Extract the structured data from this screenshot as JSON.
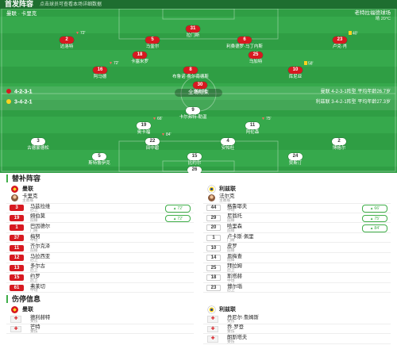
{
  "header": {
    "title": "首发阵容",
    "subtitle": "点击球员可查看本场详细数据"
  },
  "pitch": {
    "home_label": "曼联 · 卡里克",
    "venue": "老特拉福德球场",
    "weather": "晴 20°C",
    "center_text": "全场结束",
    "home_formation": "4-2-3-1",
    "away_formation": "3-4-2-1",
    "home_summary": "曼联 4-2-3-1阵型 平均年龄26.7岁",
    "away_summary": "利兹联 3-4-2-1阵型 平均年龄27.3岁"
  },
  "colors": {
    "home_kit": "#d71920",
    "away_kit": "#ffffff",
    "pitch": "#2f9e44",
    "accent": "#3fae49",
    "header": "#1e6e30"
  },
  "sections": {
    "subs_title": "替补阵容",
    "injury_title": "伤停信息"
  },
  "home": {
    "name": "曼联",
    "coach": "卡里克",
    "coach_role": "主教练",
    "starters": [
      {
        "number": "31",
        "name": "拉门斯"
      },
      {
        "number": "2",
        "name": "达洛特",
        "event": {
          "icon": "sub-out-icon",
          "minute": "72'"
        }
      },
      {
        "number": "5",
        "name": "马奎尔"
      },
      {
        "number": "6",
        "name": "利桑德罗·马丁内斯"
      },
      {
        "number": "23",
        "name": "卢克·肖",
        "event": {
          "icon": "yellow-card-icon",
          "minute": "40'"
        }
      },
      {
        "number": "18",
        "name": "卡塞米罗"
      },
      {
        "number": "25",
        "name": "乌加特"
      },
      {
        "number": "16",
        "name": "阿马德",
        "event": {
          "icon": "sub-out-icon",
          "minute": "72'"
        }
      },
      {
        "number": "8",
        "name": "布鲁诺·费尔南德斯"
      },
      {
        "number": "10",
        "name": "库尼亚",
        "event": {
          "icon": "yellow-card-icon",
          "minute": "58'"
        }
      },
      {
        "number": "30",
        "name": "谢什科"
      }
    ],
    "subs": [
      {
        "number": "3",
        "name": "马兹拉维",
        "position": "后卫",
        "minute": "72'"
      },
      {
        "number": "19",
        "name": "姆伯莫",
        "position": "前锋",
        "minute": "72'"
      },
      {
        "number": "1",
        "name": "巴因德尔",
        "position": "门将"
      },
      {
        "number": "37",
        "name": "梅努",
        "position": "中场"
      },
      {
        "number": "11",
        "name": "齐尔克泽",
        "position": "前锋"
      },
      {
        "number": "12",
        "name": "马拉西亚",
        "position": "后卫"
      },
      {
        "number": "13",
        "name": "多尔古",
        "position": "后卫"
      },
      {
        "number": "15",
        "name": "约罗",
        "position": "后卫"
      },
      {
        "number": "61",
        "name": "弗莱切",
        "position": "中场"
      }
    ],
    "injuries": [
      {
        "name": "德利赫特",
        "status": "受伤"
      },
      {
        "name": "芒特",
        "status": "受伤"
      }
    ]
  },
  "away": {
    "name": "利兹联",
    "coach": "法尔克",
    "coach_role": "主教练",
    "starters": [
      {
        "number": "26",
        "name": "达洛"
      },
      {
        "number": "5",
        "name": "斯特鲁伊克"
      },
      {
        "number": "15",
        "name": "比约尔"
      },
      {
        "number": "24",
        "name": "贾斯汀"
      },
      {
        "number": "3",
        "name": "古德蒙德松"
      },
      {
        "number": "22",
        "name": "田中碧",
        "event": {
          "icon": "sub-out-icon",
          "minute": "84'"
        }
      },
      {
        "number": "4",
        "name": "安帕杜"
      },
      {
        "number": "2",
        "name": "博格尔"
      },
      {
        "number": "19",
        "name": "奥卡福",
        "event": {
          "icon": "sub-out-icon",
          "minute": "66'"
        }
      },
      {
        "number": "11",
        "name": "阿伦森",
        "event": {
          "icon": "sub-out-icon",
          "minute": "75'"
        }
      },
      {
        "number": "9",
        "name": "卡尔弗特-勒温"
      }
    ],
    "subs": [
      {
        "number": "44",
        "name": "格鲁耶夫",
        "position": "中场",
        "minute": "66'"
      },
      {
        "number": "29",
        "name": "尼翁托",
        "position": "前锋",
        "minute": "75'"
      },
      {
        "number": "20",
        "name": "哈里森",
        "position": "前锋",
        "minute": "84'"
      },
      {
        "number": "1",
        "name": "卢卡斯·佩里",
        "position": "门将"
      },
      {
        "number": "10",
        "name": "皮罗",
        "position": "前锋"
      },
      {
        "number": "14",
        "name": "恩梅查",
        "position": "前锋"
      },
      {
        "number": "25",
        "name": "拜拉姆",
        "position": "后卫"
      },
      {
        "number": "18",
        "name": "斯塔赫",
        "position": "中场"
      },
      {
        "number": "23",
        "name": "博尔瑙",
        "position": "后卫"
      }
    ],
    "injuries": [
      {
        "name": "丹尼尔·詹姆斯",
        "status": "受伤"
      },
      {
        "name": "乔·罗登",
        "status": "受伤"
      },
      {
        "name": "朗斯塔夫",
        "status": "受伤"
      }
    ]
  }
}
